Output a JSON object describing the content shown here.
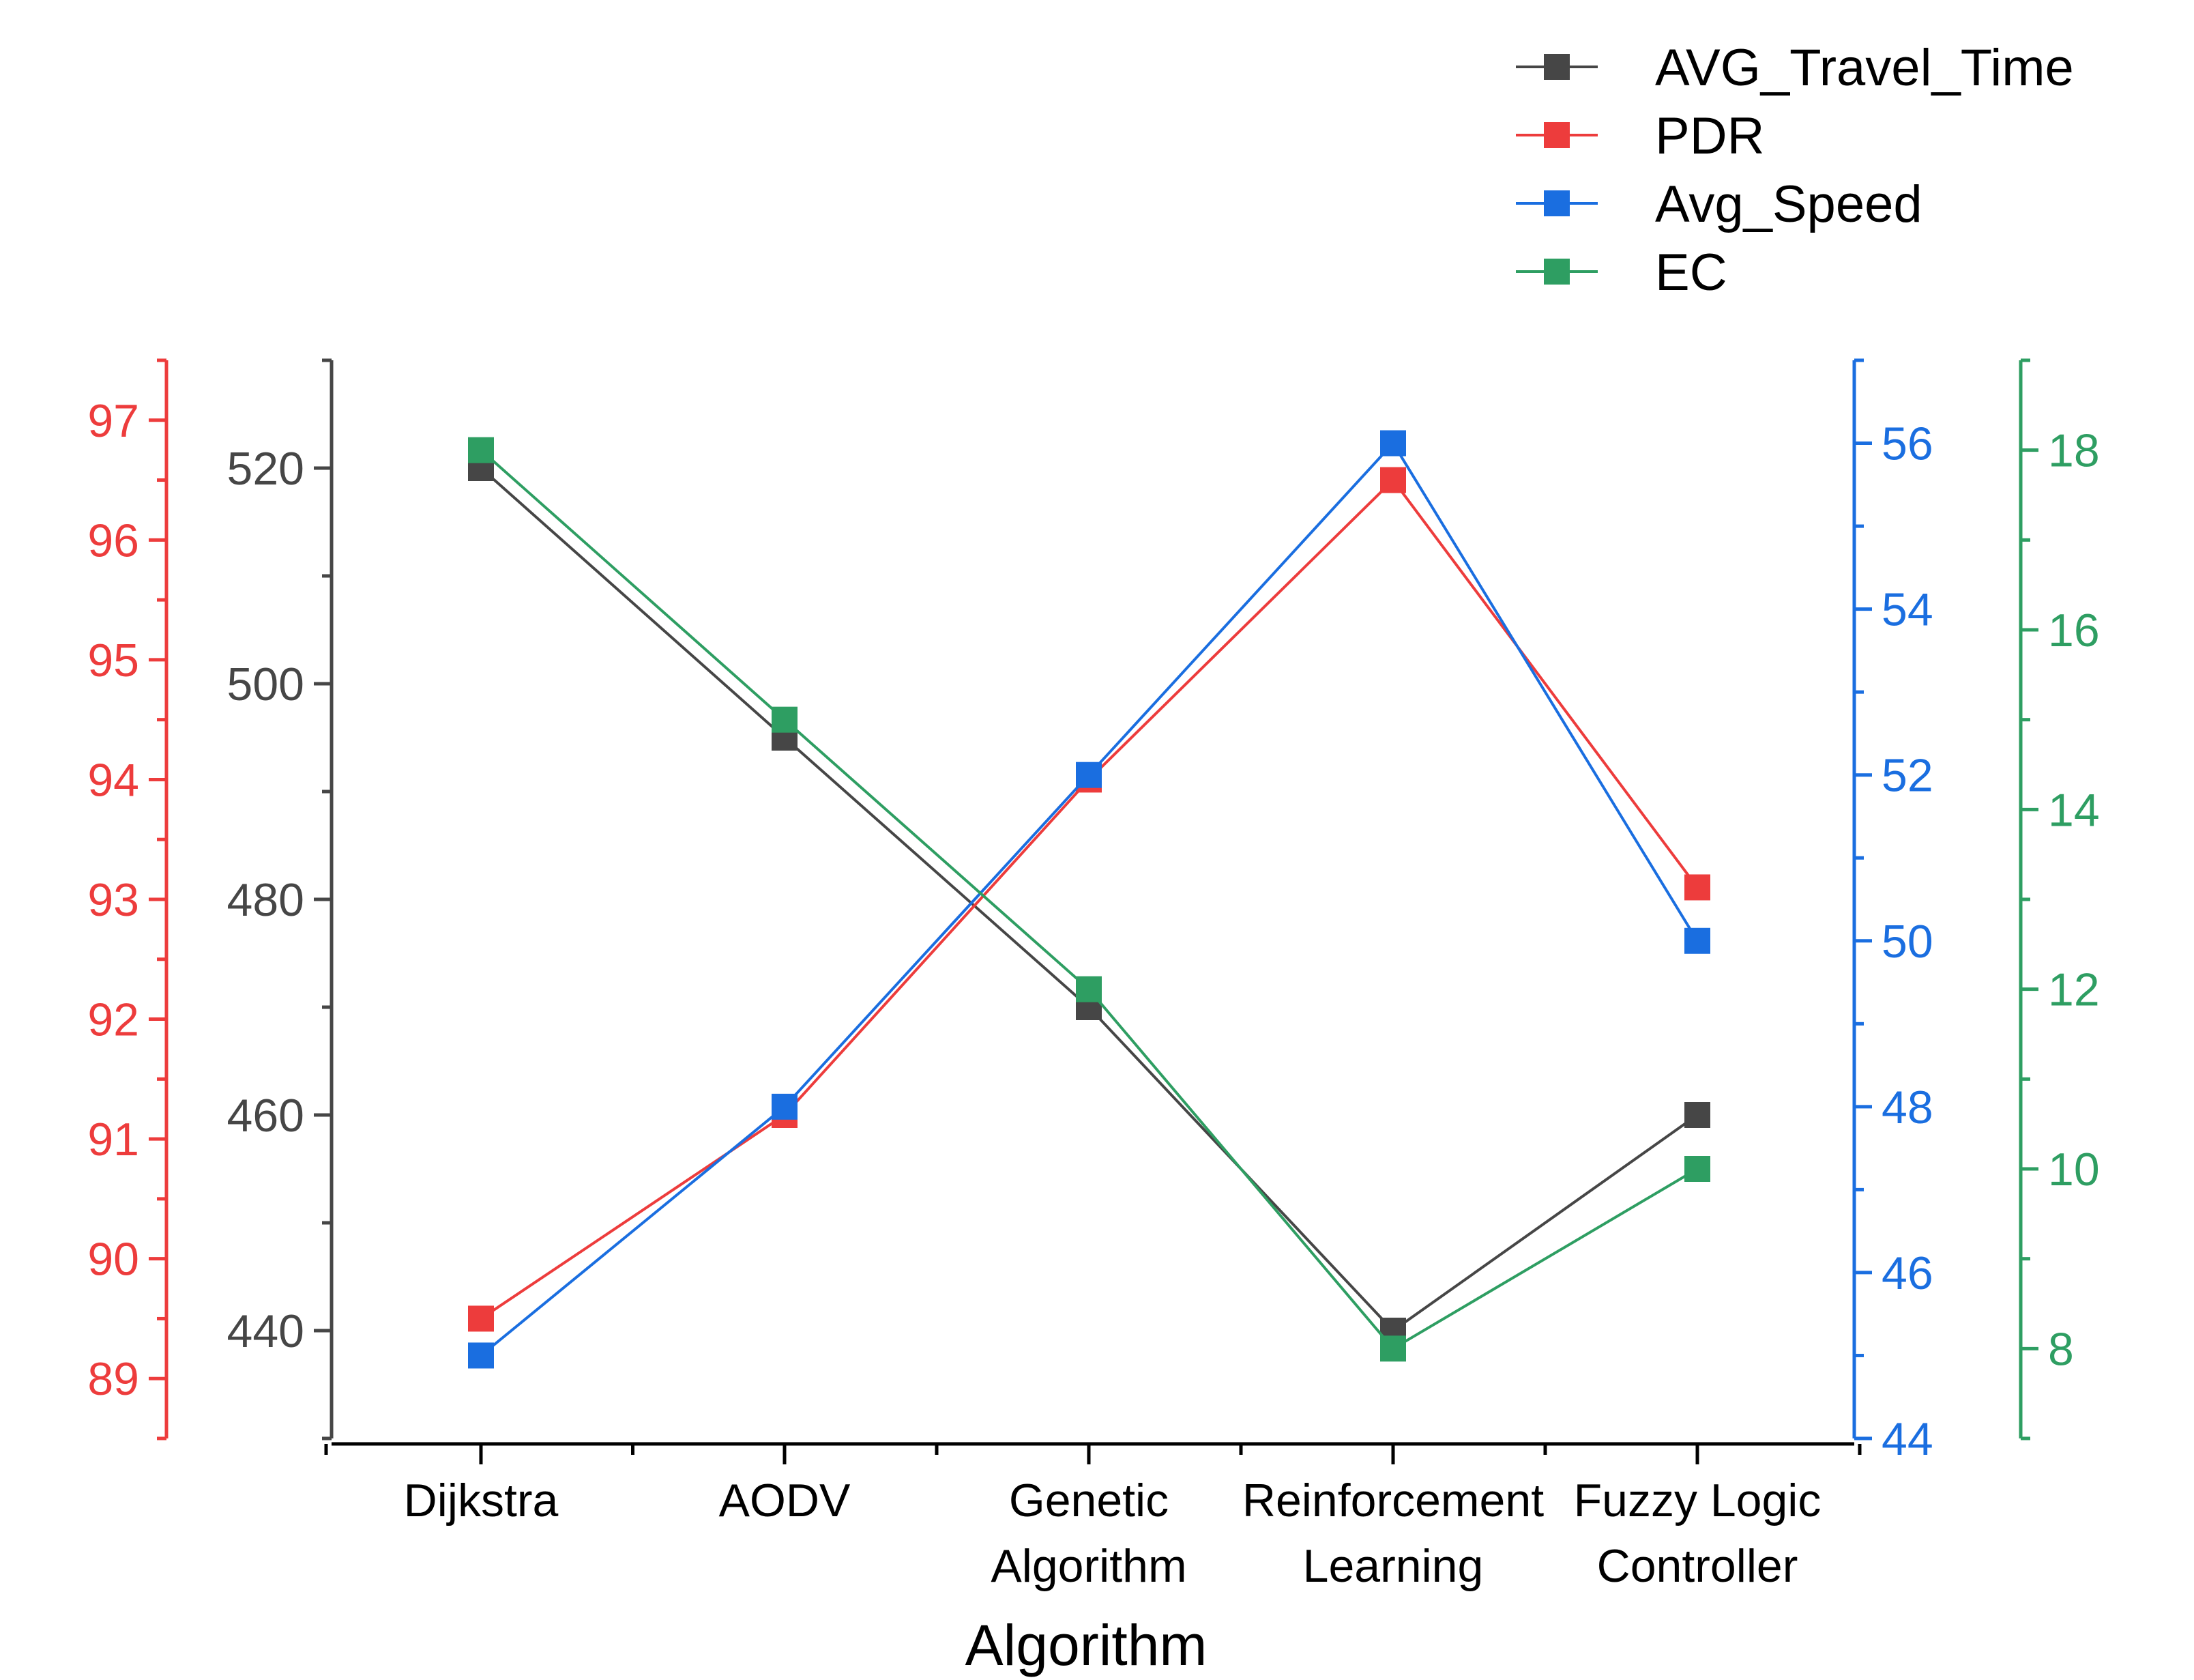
{
  "chart_data": {
    "type": "line",
    "xlabel": "Algorithm",
    "categories": [
      [
        "Dijkstra"
      ],
      [
        "AODV"
      ],
      [
        "Genetic",
        "Algorithm"
      ],
      [
        "Reinforcement",
        "Learning"
      ],
      [
        "Fuzzy Logic",
        "Controller"
      ]
    ],
    "series": [
      {
        "name": "AVG_Travel_Time",
        "color": "#464646",
        "axis": "ttime",
        "values": [
          520,
          495,
          470,
          440,
          460
        ]
      },
      {
        "name": "PDR",
        "color": "#ed3c3c",
        "axis": "pdr",
        "values": [
          89.5,
          91.2,
          94.0,
          96.5,
          93.1
        ]
      },
      {
        "name": "Avg_Speed",
        "color": "#1a6ee0",
        "axis": "speed",
        "values": [
          45,
          48,
          52,
          56,
          50
        ]
      },
      {
        "name": "EC",
        "color": "#2e9e62",
        "axis": "ec",
        "values": [
          18,
          15,
          12,
          8,
          10
        ]
      }
    ],
    "axes": {
      "pdr": {
        "color": "#ed3c3c",
        "side": "left-outer",
        "range": [
          88.5,
          97.5
        ],
        "ticks": [
          89,
          90,
          91,
          92,
          93,
          94,
          95,
          96,
          97
        ],
        "minor_step": 0.5
      },
      "ttime": {
        "color": "#464646",
        "side": "left-inner",
        "range": [
          430,
          530
        ],
        "ticks": [
          440,
          460,
          480,
          500,
          520
        ],
        "minor_step": 10
      },
      "speed": {
        "color": "#1a6ee0",
        "side": "right-inner",
        "range": [
          44,
          57
        ],
        "ticks": [
          44,
          46,
          48,
          50,
          52,
          54,
          56
        ],
        "minor_step": 1
      },
      "ec": {
        "color": "#2e9e62",
        "side": "right-outer",
        "range": [
          7,
          19
        ],
        "ticks": [
          8,
          10,
          12,
          14,
          16,
          18
        ],
        "minor_step": 1
      }
    },
    "legend_position": "top-right",
    "grid": false
  }
}
